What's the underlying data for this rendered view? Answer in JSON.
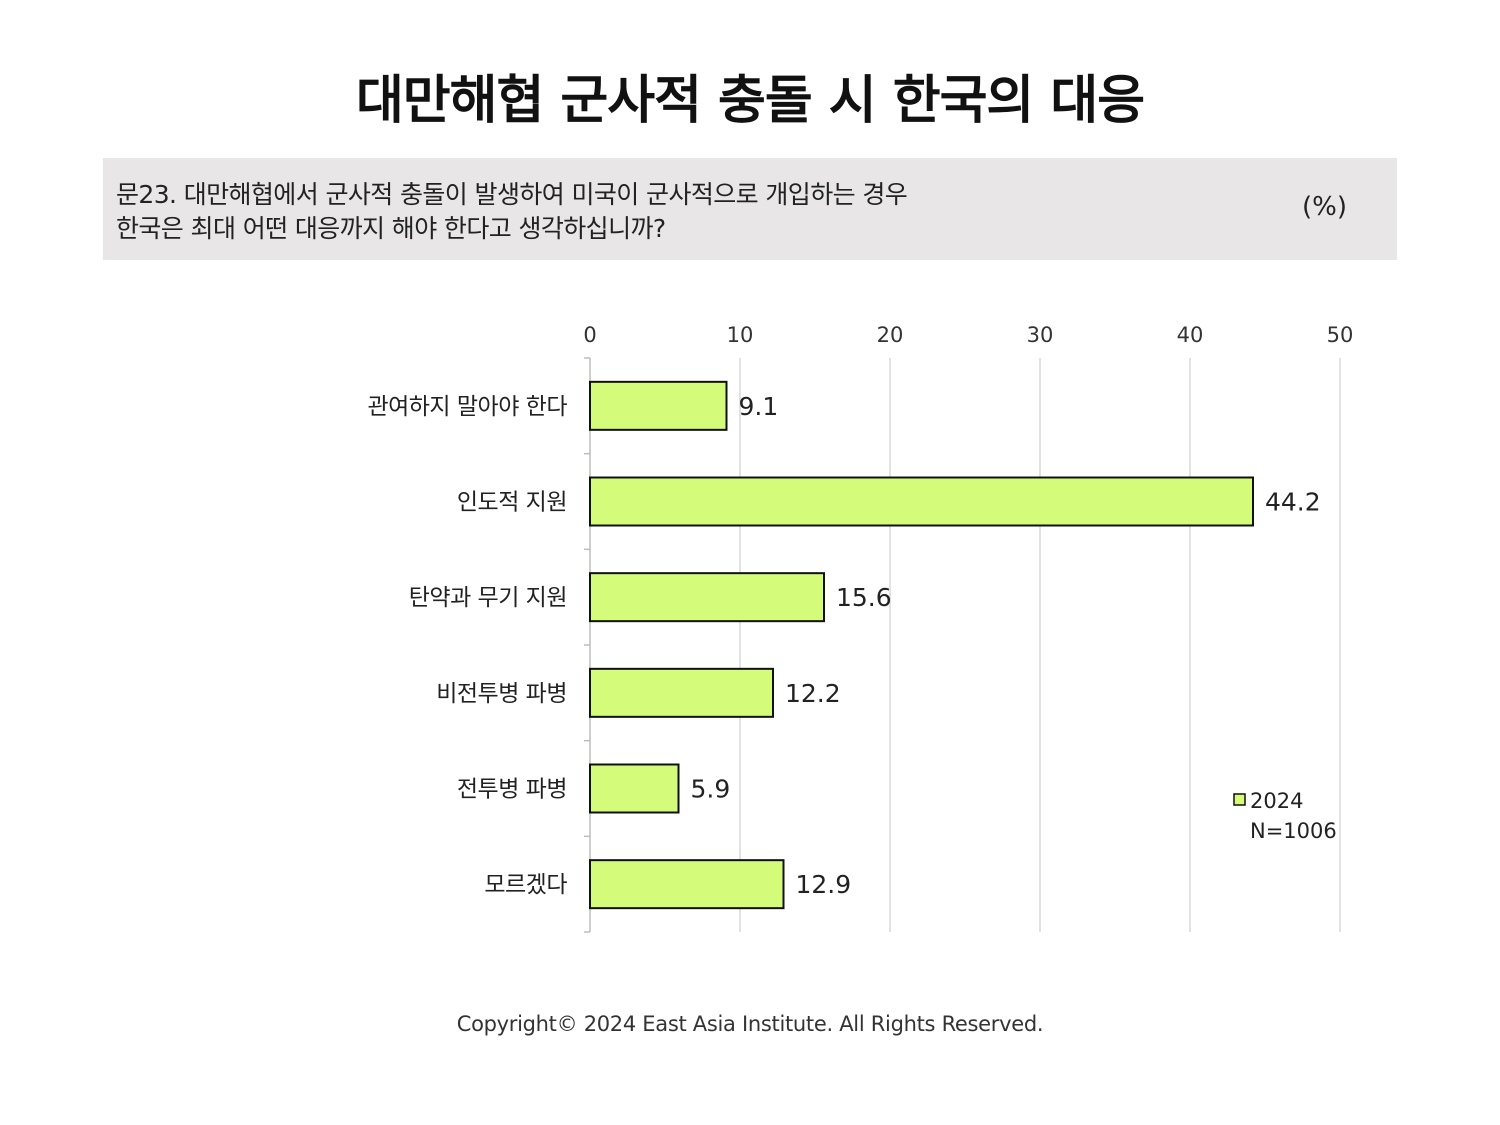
{
  "title": "대만해협 군사적 충돌 시 한국의 대응",
  "question": {
    "line1": "문23. 대만해협에서 군사적 충돌이 발생하여 미국이 군사적으로 개입하는 경우",
    "line2": "한국은 최대 어떤 대응까지 해야 한다고 생각하십니까?",
    "unit": "(%)"
  },
  "chart_data": {
    "type": "bar",
    "orientation": "horizontal",
    "categories": [
      "관여하지 말아야 한다",
      "인도적 지원",
      "탄약과 무기 지원",
      "비전투병 파병",
      "전투병 파병",
      "모르겠다"
    ],
    "series": [
      {
        "name": "2024",
        "values": [
          9.1,
          44.2,
          15.6,
          12.2,
          5.9,
          12.9
        ]
      }
    ],
    "data_labels": [
      "9.1",
      "44.2",
      "15.6",
      "12.2",
      "5.9",
      "12.9"
    ],
    "xlim": [
      0,
      50
    ],
    "xticks": [
      "0",
      "10",
      "20",
      "30",
      "40",
      "50"
    ],
    "grid": true,
    "legend": {
      "placement": "bottom-right",
      "label": "2024",
      "note": "N=1006"
    },
    "colors": {
      "bar": "#d4fb79",
      "bar_stroke": "#111111",
      "grid": "#d9d9d9"
    }
  },
  "footer": "Copyright© 2024 East Asia Institute. All Rights Reserved."
}
